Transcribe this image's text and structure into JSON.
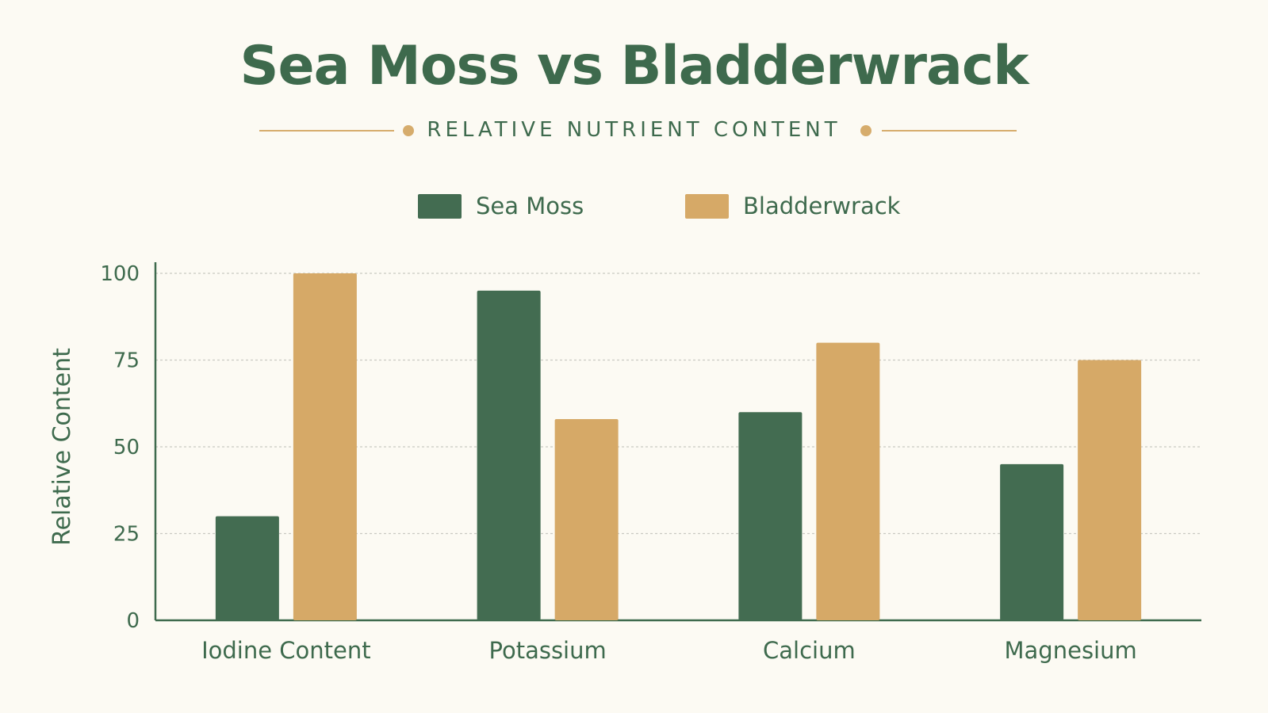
{
  "title": "Sea Moss vs Bladderwrack",
  "subtitle": "RELATIVE NUTRIENT CONTENT",
  "colors": {
    "background": "#fcfaf3",
    "sea_moss": "#436c51",
    "bladderwrack": "#d6a967",
    "text": "#3e6a4d",
    "accent": "#d6ac6c",
    "axis": "#3e6a4d",
    "grid": "#c9c9c2"
  },
  "chart_data": {
    "type": "bar",
    "title": "Sea Moss vs Bladderwrack",
    "subtitle": "RELATIVE NUTRIENT CONTENT",
    "categories": [
      "Iodine Content",
      "Potassium",
      "Calcium",
      "Magnesium"
    ],
    "series": [
      {
        "name": "Sea Moss",
        "values": [
          30,
          95,
          60,
          45
        ]
      },
      {
        "name": "Bladderwrack",
        "values": [
          100,
          58,
          80,
          75
        ]
      }
    ],
    "xlabel": "",
    "ylabel": "Relative Content",
    "ylim": [
      0,
      100
    ],
    "yticks": [
      "0",
      "25",
      "50",
      "75",
      "100"
    ],
    "grid": true,
    "grid_style": "dashed",
    "legend": "top-center"
  }
}
